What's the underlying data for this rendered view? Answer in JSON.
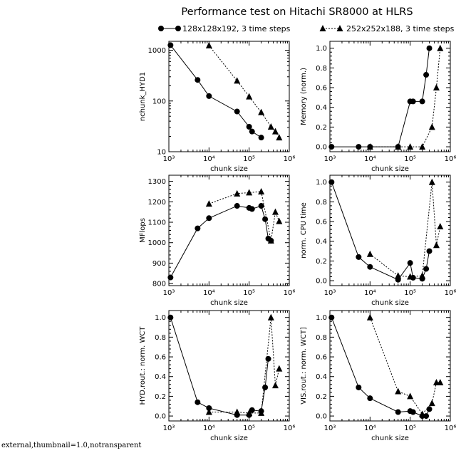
{
  "title": "Performance test on Hitachi SR8000 at HLRS",
  "legend": [
    {
      "label": "128x128x192, 3 time steps",
      "marker": "circle",
      "line": "solid"
    },
    {
      "label": "252x252x188, 3 time steps",
      "marker": "triangle",
      "line": "dotted"
    }
  ],
  "footer_text": "external,thumbnail=1.0,notransparent",
  "chart_data": [
    {
      "id": "nchunk",
      "type": "line",
      "xscale": "log",
      "yscale": "log",
      "xlabel": "chunk size",
      "ylabel": "nchunk_HYD1",
      "xlim": [
        1000,
        1000000
      ],
      "ylim": [
        10,
        1500
      ],
      "xticks": [
        1000,
        10000,
        100000,
        1000000
      ],
      "xticklabels": [
        "10³",
        "10⁴",
        "10⁵",
        "10⁶"
      ],
      "yticks": [
        10,
        100,
        1000
      ],
      "yticklabels": [
        "10",
        "100",
        "1000"
      ],
      "series": [
        {
          "marker": "circle",
          "line": "solid",
          "x": [
            1100,
            5200,
            10000,
            50000,
            100000,
            118000,
            200000
          ],
          "y": [
            1260,
            260,
            125,
            62,
            31,
            25,
            19
          ]
        },
        {
          "marker": "triangle",
          "line": "dotted",
          "x": [
            10000,
            50000,
            100000,
            200000,
            350000,
            450000,
            560000
          ],
          "y": [
            1240,
            250,
            122,
            60,
            31,
            25,
            19
          ]
        }
      ]
    },
    {
      "id": "memory",
      "type": "line",
      "xscale": "log",
      "yscale": "linear",
      "xlabel": "chunk size",
      "ylabel": "Memory (norm.)",
      "xlim": [
        1000,
        1000000
      ],
      "ylim": [
        -0.05,
        1.07
      ],
      "xticks": [
        1000,
        10000,
        100000,
        1000000
      ],
      "xticklabels": [
        "10³",
        "10⁴",
        "10⁵",
        "10⁶"
      ],
      "yticks": [
        0,
        0.2,
        0.4,
        0.6,
        0.8,
        1.0
      ],
      "yticklabels": [
        "0.0",
        "0.2",
        "0.4",
        "0.6",
        "0.8",
        "1.0"
      ],
      "series": [
        {
          "marker": "circle",
          "line": "solid",
          "x": [
            1100,
            5200,
            10000,
            50000,
            100000,
            118000,
            200000,
            250000,
            300000
          ],
          "y": [
            0,
            0,
            0,
            0,
            0.46,
            0.46,
            0.46,
            0.73,
            1.0
          ]
        },
        {
          "marker": "triangle",
          "line": "dotted",
          "x": [
            10000,
            50000,
            100000,
            200000,
            350000,
            450000,
            560000
          ],
          "y": [
            0,
            0,
            0,
            0,
            0.2,
            0.6,
            1.0
          ]
        }
      ]
    },
    {
      "id": "mflops",
      "type": "line",
      "xscale": "log",
      "yscale": "linear",
      "xlabel": "chunk size",
      "ylabel": "MFlops",
      "xlim": [
        1000,
        1000000
      ],
      "ylim": [
        790,
        1330
      ],
      "xticks": [
        1000,
        10000,
        100000,
        1000000
      ],
      "xticklabels": [
        "10³",
        "10⁴",
        "10⁵",
        "10⁶"
      ],
      "yticks": [
        800,
        900,
        1000,
        1100,
        1200,
        1300
      ],
      "yticklabels": [
        "800",
        "900",
        "1000",
        "1100",
        "1200",
        "1300"
      ],
      "series": [
        {
          "marker": "circle",
          "line": "solid",
          "x": [
            1100,
            5200,
            10000,
            50000,
            100000,
            118000,
            200000,
            250000,
            300000,
            350000
          ],
          "y": [
            830,
            1070,
            1120,
            1180,
            1170,
            1165,
            1180,
            1115,
            1020,
            1010
          ]
        },
        {
          "marker": "triangle",
          "line": "dotted",
          "x": [
            10000,
            50000,
            100000,
            200000,
            350000,
            450000,
            560000
          ],
          "y": [
            1190,
            1240,
            1245,
            1250,
            1010,
            1150,
            1105
          ]
        }
      ]
    },
    {
      "id": "cpu",
      "type": "line",
      "xscale": "log",
      "yscale": "linear",
      "xlabel": "chunk size",
      "ylabel": "norm. CPU time",
      "xlim": [
        1000,
        1000000
      ],
      "ylim": [
        -0.05,
        1.07
      ],
      "xticks": [
        1000,
        10000,
        100000,
        1000000
      ],
      "xticklabels": [
        "10³",
        "10⁴",
        "10⁵",
        "10⁶"
      ],
      "yticks": [
        0,
        0.2,
        0.4,
        0.6,
        0.8,
        1.0
      ],
      "yticklabels": [
        "0.0",
        "0.2",
        "0.4",
        "0.6",
        "0.8",
        "1.0"
      ],
      "series": [
        {
          "marker": "circle",
          "line": "solid",
          "x": [
            1100,
            5200,
            10000,
            50000,
            100000,
            118000,
            200000,
            250000,
            300000
          ],
          "y": [
            1.0,
            0.24,
            0.14,
            0.01,
            0.18,
            0.03,
            0.02,
            0.12,
            0.3
          ]
        },
        {
          "marker": "triangle",
          "line": "dotted",
          "x": [
            10000,
            50000,
            100000,
            200000,
            350000,
            450000,
            560000
          ],
          "y": [
            0.27,
            0.05,
            0.04,
            0.05,
            1.0,
            0.36,
            0.55
          ]
        }
      ]
    },
    {
      "id": "hyd",
      "type": "line",
      "xscale": "log",
      "yscale": "linear",
      "xlabel": "chunk size",
      "ylabel": "HYD.rout.: norm. WCT",
      "xlim": [
        1000,
        1000000
      ],
      "ylim": [
        -0.05,
        1.07
      ],
      "xticks": [
        1000,
        10000,
        100000,
        1000000
      ],
      "xticklabels": [
        "10³",
        "10⁴",
        "10⁵",
        "10⁶"
      ],
      "yticks": [
        0,
        0.2,
        0.4,
        0.6,
        0.8,
        1.0
      ],
      "yticklabels": [
        "0.0",
        "0.2",
        "0.4",
        "0.6",
        "0.8",
        "1.0"
      ],
      "series": [
        {
          "marker": "circle",
          "line": "solid",
          "x": [
            1100,
            5200,
            10000,
            50000,
            100000,
            118000,
            200000,
            250000,
            300000
          ],
          "y": [
            1.0,
            0.14,
            0.08,
            0.01,
            0.01,
            0.06,
            0.05,
            0.29,
            0.58
          ]
        },
        {
          "marker": "triangle",
          "line": "dotted",
          "x": [
            10000,
            50000,
            100000,
            200000,
            350000,
            450000,
            560000
          ],
          "y": [
            0.04,
            0.04,
            0.03,
            0.03,
            1.0,
            0.31,
            0.48
          ]
        }
      ]
    },
    {
      "id": "vis",
      "type": "line",
      "xscale": "log",
      "yscale": "linear",
      "xlabel": "chunk size",
      "ylabel": "VIS.rout.: norm. WCT]",
      "xlim": [
        1000,
        1000000
      ],
      "ylim": [
        -0.05,
        1.07
      ],
      "xticks": [
        1000,
        10000,
        100000,
        1000000
      ],
      "xticklabels": [
        "10³",
        "10⁴",
        "10⁵",
        "10⁶"
      ],
      "yticks": [
        0,
        0.2,
        0.4,
        0.6,
        0.8,
        1.0
      ],
      "yticklabels": [
        "0.0",
        "0.2",
        "0.4",
        "0.6",
        "0.8",
        "1.0"
      ],
      "series": [
        {
          "marker": "circle",
          "line": "solid",
          "x": [
            1100,
            5200,
            10000,
            50000,
            100000,
            118000,
            200000,
            250000,
            300000
          ],
          "y": [
            1.0,
            0.29,
            0.18,
            0.04,
            0.05,
            0.04,
            0.0,
            0.0,
            0.07
          ]
        },
        {
          "marker": "triangle",
          "line": "dotted",
          "x": [
            10000,
            50000,
            100000,
            200000,
            350000,
            450000,
            560000
          ],
          "y": [
            1.0,
            0.25,
            0.2,
            0.02,
            0.13,
            0.34,
            0.34
          ]
        }
      ]
    }
  ]
}
